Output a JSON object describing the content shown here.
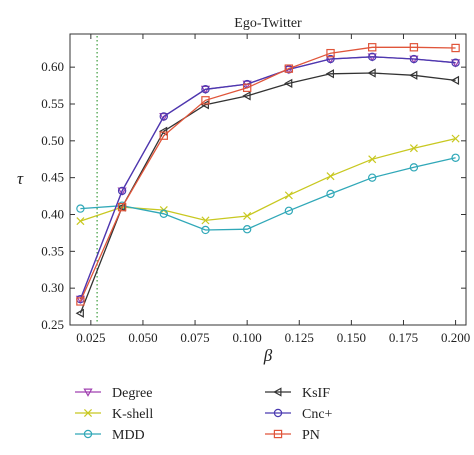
{
  "chart_data": {
    "type": "line",
    "title": "Ego-Twitter",
    "xlabel": "β",
    "ylabel": "τ",
    "xlim": [
      0.015,
      0.205
    ],
    "ylim": [
      0.25,
      0.645
    ],
    "xticks": [
      0.025,
      0.05,
      0.075,
      0.1,
      0.125,
      0.15,
      0.175,
      0.2
    ],
    "xtick_labels": [
      "0.025",
      "0.050",
      "0.075",
      "0.100",
      "0.125",
      "0.150",
      "0.175",
      "0.200"
    ],
    "yticks": [
      0.25,
      0.3,
      0.35,
      0.4,
      0.45,
      0.5,
      0.55,
      0.6
    ],
    "ytick_labels": [
      "0.25",
      "0.30",
      "0.35",
      "0.40",
      "0.45",
      "0.50",
      "0.55",
      "0.60"
    ],
    "reference_line": {
      "x": 0.028,
      "style": "dotted",
      "color": "#3a9a3a"
    },
    "grid": false,
    "legend_position": "bottom",
    "x": [
      0.02,
      0.04,
      0.06,
      0.08,
      0.1,
      0.12,
      0.14,
      0.16,
      0.18,
      0.2
    ],
    "series": [
      {
        "name": "Degree",
        "marker": "triangle-down",
        "color": "#a040b0",
        "values": [
          0.285,
          0.432,
          0.533,
          0.57,
          0.577,
          0.597,
          0.611,
          0.614,
          0.611,
          0.606
        ]
      },
      {
        "name": "K-shell",
        "marker": "x",
        "color": "#c8c820",
        "values": [
          0.391,
          0.41,
          0.406,
          0.392,
          0.398,
          0.426,
          0.452,
          0.475,
          0.49,
          0.503
        ]
      },
      {
        "name": "MDD",
        "marker": "circle",
        "color": "#30a8b8",
        "values": [
          0.408,
          0.412,
          0.401,
          0.379,
          0.38,
          0.405,
          0.428,
          0.45,
          0.464,
          0.477
        ]
      },
      {
        "name": "KsIF",
        "marker": "triangle-left",
        "color": "#333333",
        "values": [
          0.266,
          0.41,
          0.513,
          0.549,
          0.561,
          0.578,
          0.591,
          0.592,
          0.589,
          0.582
        ]
      },
      {
        "name": "Cnc+",
        "marker": "circle",
        "color": "#4a3ab0",
        "values": [
          0.285,
          0.432,
          0.533,
          0.57,
          0.577,
          0.597,
          0.611,
          0.614,
          0.611,
          0.606
        ]
      },
      {
        "name": "PN",
        "marker": "square",
        "color": "#e0553a",
        "values": [
          0.282,
          0.41,
          0.507,
          0.555,
          0.572,
          0.598,
          0.619,
          0.627,
          0.627,
          0.626
        ]
      }
    ]
  }
}
